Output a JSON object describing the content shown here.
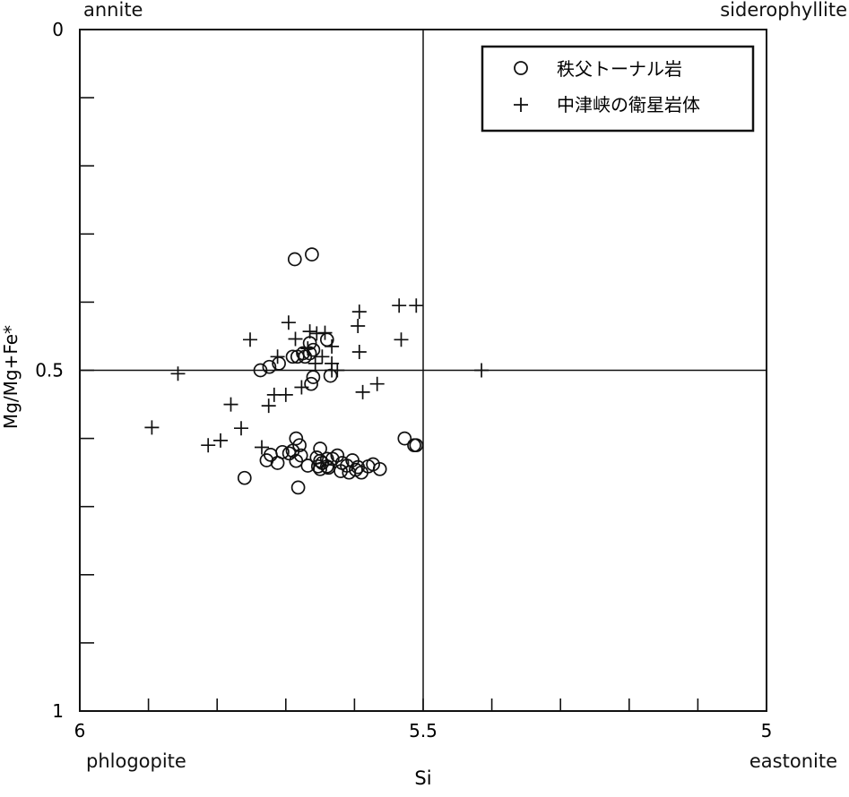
{
  "chart_data": {
    "type": "scatter",
    "title": "",
    "xlabel": "Si",
    "ylabel": "Mg/Mg+Fe*",
    "xlim": [
      6,
      5
    ],
    "ylim": [
      1,
      0
    ],
    "x_reversed": true,
    "y_reversed": true,
    "x_ticks": [
      6,
      5.9,
      5.8,
      5.7,
      5.6,
      5.5,
      5.4,
      5.3,
      5.2,
      5.1,
      5
    ],
    "y_ticks": [
      0,
      0.1,
      0.2,
      0.3,
      0.4,
      0.5,
      0.6,
      0.7,
      0.8,
      0.9,
      1
    ],
    "x_tick_labels": [
      {
        "value": 6,
        "label": "6"
      },
      {
        "value": 5.5,
        "label": "5.5"
      },
      {
        "value": 5,
        "label": "5"
      }
    ],
    "y_tick_labels": [
      {
        "value": 0,
        "label": "0"
      },
      {
        "value": 0.5,
        "label": "0.5"
      },
      {
        "value": 1,
        "label": "1"
      }
    ],
    "reference_lines": [
      {
        "orientation": "vertical",
        "value": 5.5
      },
      {
        "orientation": "horizontal",
        "value": 0.5
      }
    ],
    "corner_labels": {
      "top_left": "annite",
      "top_right": "siderophyllite",
      "bottom_left": "phlogopite",
      "bottom_right": "eastonite"
    },
    "legend_position": "top-right",
    "grid": false,
    "series": [
      {
        "name": "秩父トーナル岩",
        "marker": "circle",
        "points": [
          [
            5.687,
            0.337
          ],
          [
            5.662,
            0.33
          ],
          [
            5.665,
            0.46
          ],
          [
            5.672,
            0.48
          ],
          [
            5.66,
            0.47
          ],
          [
            5.665,
            0.475
          ],
          [
            5.69,
            0.48
          ],
          [
            5.683,
            0.48
          ],
          [
            5.71,
            0.49
          ],
          [
            5.675,
            0.475
          ],
          [
            5.663,
            0.52
          ],
          [
            5.64,
            0.455
          ],
          [
            5.737,
            0.5
          ],
          [
            5.724,
            0.495
          ],
          [
            5.66,
            0.51
          ],
          [
            5.635,
            0.508
          ],
          [
            5.685,
            0.6
          ],
          [
            5.68,
            0.61
          ],
          [
            5.65,
            0.615
          ],
          [
            5.69,
            0.618
          ],
          [
            5.695,
            0.622
          ],
          [
            5.678,
            0.625
          ],
          [
            5.705,
            0.62
          ],
          [
            5.722,
            0.624
          ],
          [
            5.728,
            0.632
          ],
          [
            5.712,
            0.636
          ],
          [
            5.685,
            0.633
          ],
          [
            5.668,
            0.64
          ],
          [
            5.655,
            0.628
          ],
          [
            5.65,
            0.633
          ],
          [
            5.64,
            0.63
          ],
          [
            5.647,
            0.636
          ],
          [
            5.64,
            0.641
          ],
          [
            5.632,
            0.63
          ],
          [
            5.625,
            0.625
          ],
          [
            5.618,
            0.636
          ],
          [
            5.603,
            0.632
          ],
          [
            5.611,
            0.64
          ],
          [
            5.58,
            0.641
          ],
          [
            5.595,
            0.642
          ],
          [
            5.62,
            0.648
          ],
          [
            5.608,
            0.65
          ],
          [
            5.598,
            0.646
          ],
          [
            5.59,
            0.65
          ],
          [
            5.573,
            0.638
          ],
          [
            5.563,
            0.645
          ],
          [
            5.638,
            0.643
          ],
          [
            5.65,
            0.645
          ],
          [
            5.653,
            0.641
          ],
          [
            5.76,
            0.658
          ],
          [
            5.682,
            0.672
          ],
          [
            5.527,
            0.6
          ],
          [
            5.513,
            0.61
          ],
          [
            5.51,
            0.61
          ]
        ]
      },
      {
        "name": "中津峡の衛星岩体",
        "marker": "plus",
        "points": [
          [
            5.535,
            0.405
          ],
          [
            5.593,
            0.414
          ],
          [
            5.595,
            0.435
          ],
          [
            5.532,
            0.455
          ],
          [
            5.51,
            0.405
          ],
          [
            5.415,
            0.5
          ],
          [
            5.625,
            0.5
          ],
          [
            5.668,
            0.468
          ],
          [
            5.712,
            0.48
          ],
          [
            5.752,
            0.455
          ],
          [
            5.696,
            0.43
          ],
          [
            5.686,
            0.454
          ],
          [
            5.665,
            0.443
          ],
          [
            5.655,
            0.446
          ],
          [
            5.643,
            0.445
          ],
          [
            5.593,
            0.473
          ],
          [
            5.633,
            0.49
          ],
          [
            5.657,
            0.49
          ],
          [
            5.633,
            0.5
          ],
          [
            5.633,
            0.465
          ],
          [
            5.647,
            0.48
          ],
          [
            5.567,
            0.52
          ],
          [
            5.588,
            0.532
          ],
          [
            5.677,
            0.525
          ],
          [
            5.7,
            0.536
          ],
          [
            5.717,
            0.536
          ],
          [
            5.725,
            0.552
          ],
          [
            5.78,
            0.55
          ],
          [
            5.857,
            0.505
          ],
          [
            5.895,
            0.584
          ],
          [
            5.765,
            0.585
          ],
          [
            5.735,
            0.613
          ],
          [
            5.795,
            0.603
          ],
          [
            5.813,
            0.61
          ]
        ]
      }
    ]
  }
}
